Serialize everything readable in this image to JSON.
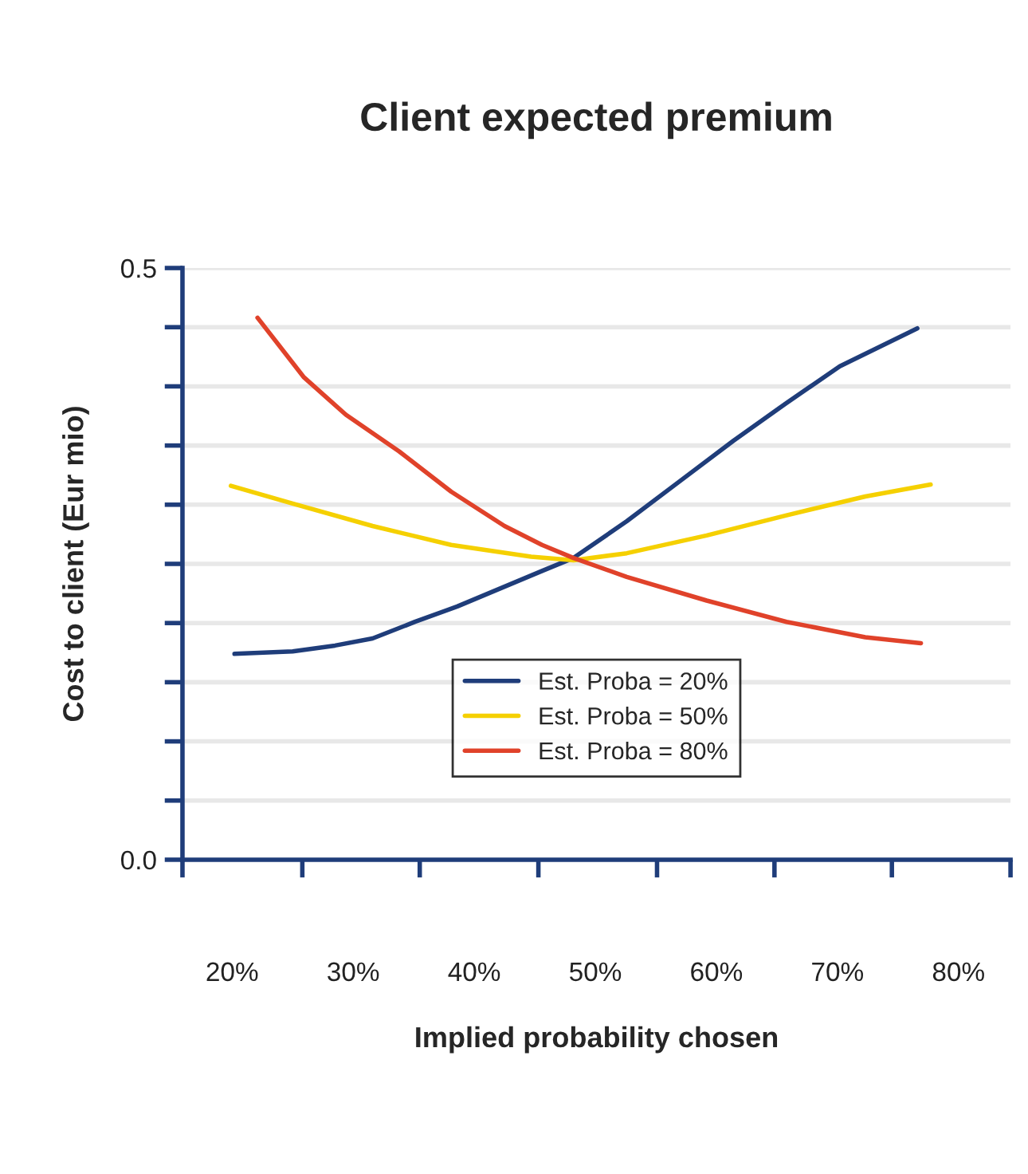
{
  "chart_data": {
    "type": "line",
    "title": "Client expected premium",
    "xlabel": "Implied probability chosen",
    "ylabel": "Cost to client (Eur mio)",
    "xlim": [
      15.9,
      84.3
    ],
    "xticks": [
      {
        "value": 20,
        "label": "20%"
      },
      {
        "value": 30,
        "label": "30%"
      },
      {
        "value": 40,
        "label": "40%"
      },
      {
        "value": 50,
        "label": "50%"
      },
      {
        "value": 60,
        "label": "60%"
      },
      {
        "value": 70,
        "label": "70%"
      },
      {
        "value": 80,
        "label": "80%"
      },
      {
        "value": 15.9,
        "label": null
      },
      {
        "value": 25.8,
        "label": null
      },
      {
        "value": 35.5,
        "label": null
      },
      {
        "value": 45.3,
        "label": null
      },
      {
        "value": 55.1,
        "label": null
      },
      {
        "value": 64.8,
        "label": null
      },
      {
        "value": 74.5,
        "label": null
      },
      {
        "value": 84.3,
        "label": null
      }
    ],
    "ylim": [
      0,
      0.5
    ],
    "yticks": [
      {
        "value": 0,
        "label": "0.0"
      },
      {
        "value": 0.05,
        "label": null
      },
      {
        "value": 0.1,
        "label": null
      },
      {
        "value": 0.15,
        "label": null
      },
      {
        "value": 0.2,
        "label": null
      },
      {
        "value": 0.25,
        "label": null
      },
      {
        "value": 0.3,
        "label": null
      },
      {
        "value": 0.35,
        "label": null
      },
      {
        "value": 0.4,
        "label": null
      },
      {
        "value": 0.45,
        "label": null
      },
      {
        "value": 0.5,
        "label": "0.5"
      }
    ],
    "grid": "y",
    "legend": "bottom",
    "line_style": "solid",
    "marker": "none",
    "series": [
      {
        "name": "Est. Proba = 20%",
        "color": "#1f3d7a",
        "x": [
          20.2,
          25.0,
          28.5,
          31.6,
          35.1,
          38.6,
          42.1,
          45.6,
          48.2,
          52.6,
          57.0,
          61.4,
          65.8,
          70.2,
          76.6
        ],
        "values": [
          0.174,
          0.176,
          0.181,
          0.187,
          0.201,
          0.214,
          0.229,
          0.244,
          0.255,
          0.286,
          0.32,
          0.354,
          0.386,
          0.417,
          0.449
        ]
      },
      {
        "name": "Est. Proba = 50%",
        "color": "#f5d000",
        "x": [
          19.9,
          25.0,
          31.6,
          38.1,
          44.7,
          48.2,
          52.6,
          59.2,
          65.8,
          72.3,
          77.7
        ],
        "values": [
          0.316,
          0.301,
          0.282,
          0.266,
          0.256,
          0.253,
          0.259,
          0.274,
          0.291,
          0.307,
          0.317
        ]
      },
      {
        "name": "Est. Proba = 80%",
        "color": "#e0422a",
        "x": [
          22.1,
          25.9,
          29.4,
          33.8,
          38.1,
          42.5,
          45.6,
          48.2,
          52.6,
          59.2,
          65.8,
          72.3,
          76.9
        ],
        "values": [
          0.458,
          0.408,
          0.376,
          0.345,
          0.311,
          0.282,
          0.266,
          0.255,
          0.239,
          0.219,
          0.201,
          0.188,
          0.183
        ]
      }
    ]
  }
}
